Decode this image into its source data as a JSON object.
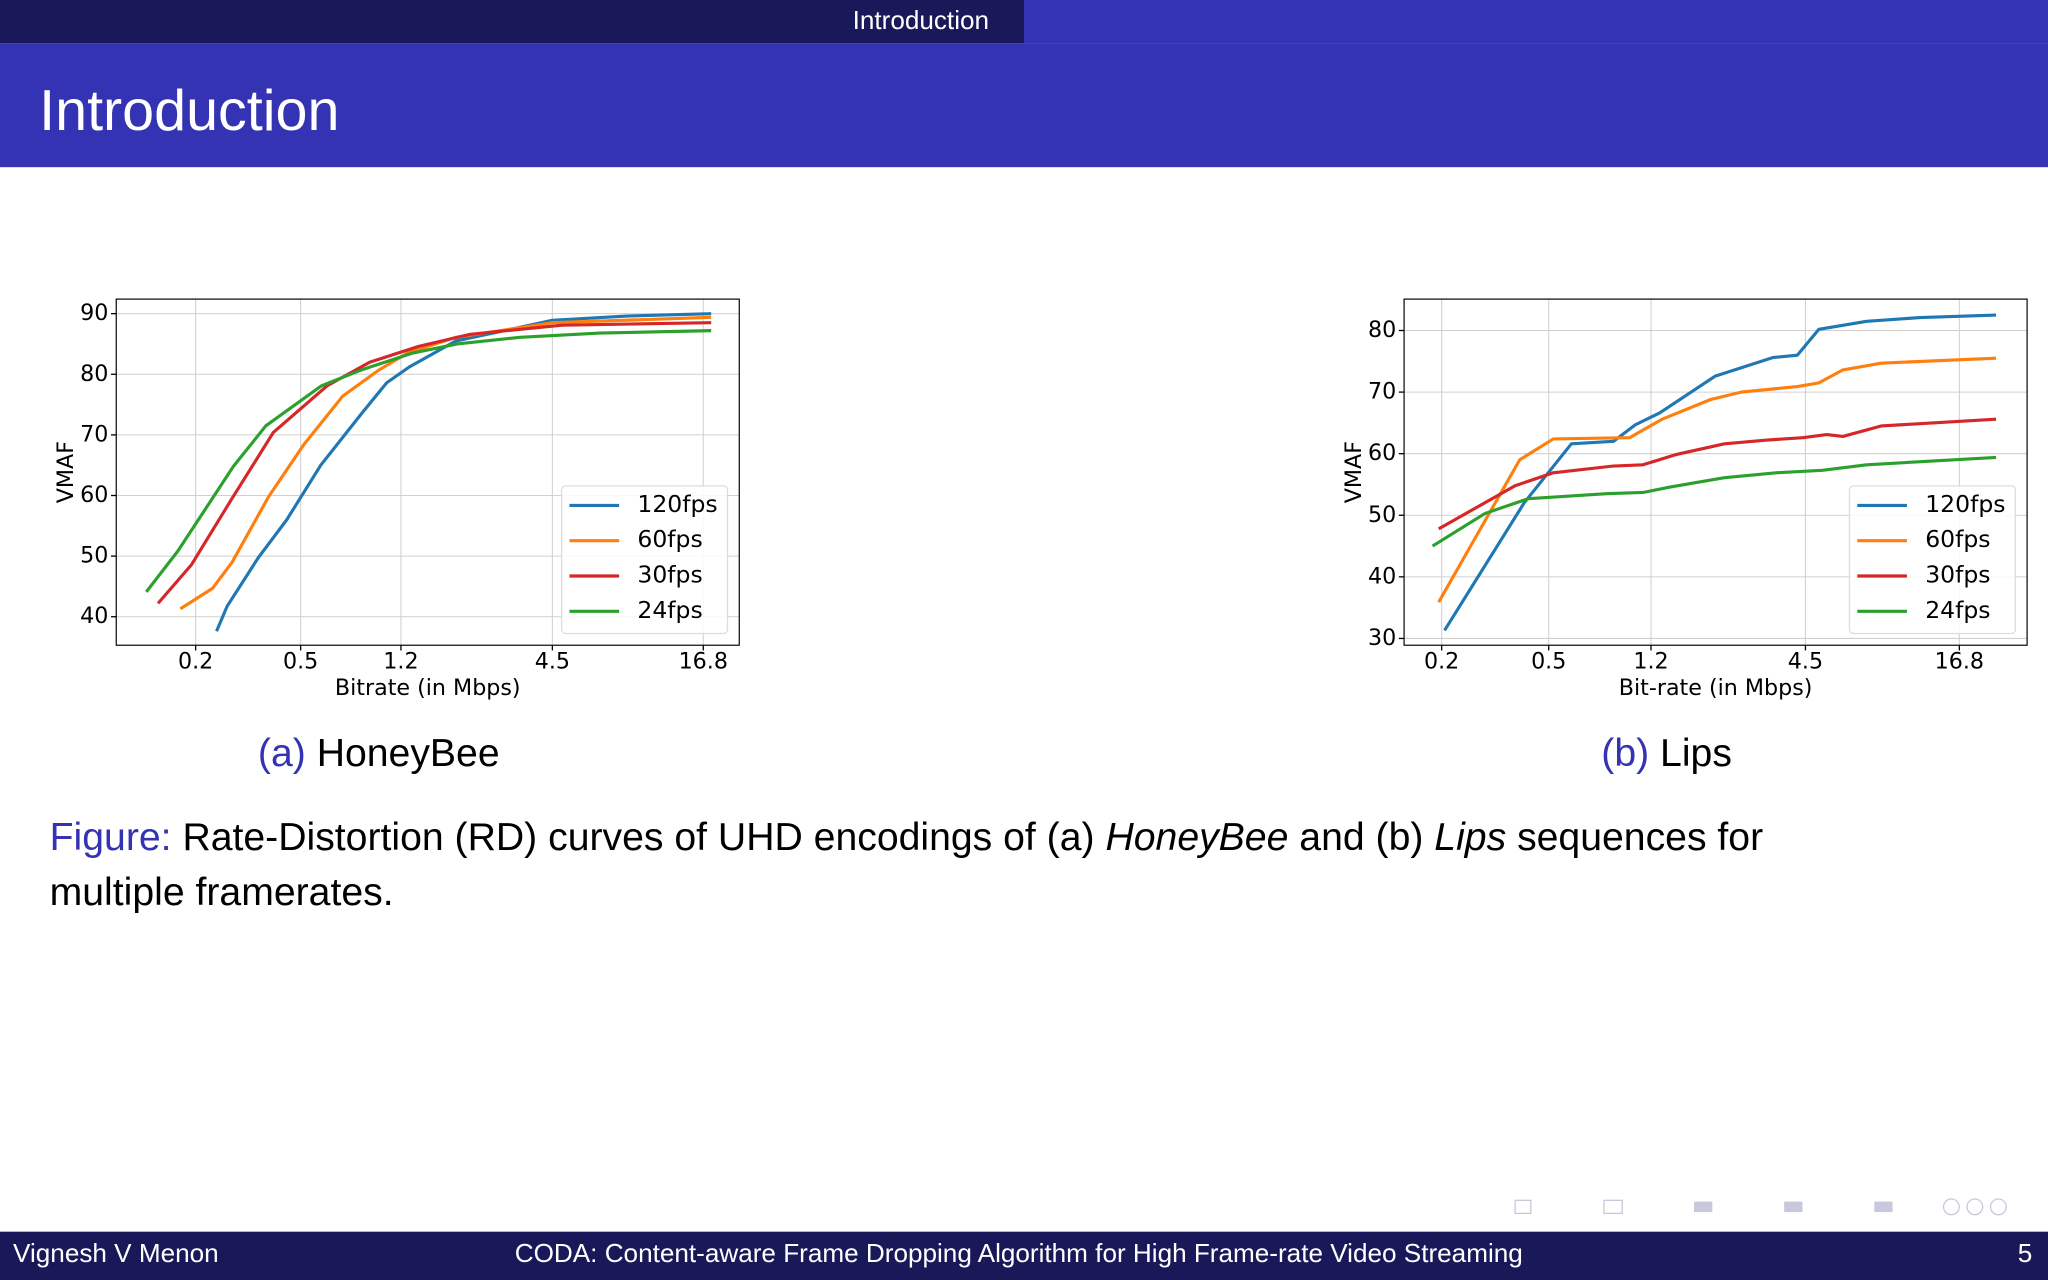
{
  "header": {
    "section": "Introduction",
    "title": "Introduction"
  },
  "chart_data": [
    {
      "type": "line",
      "x_label": "Bitrate (in Mbps)",
      "y_label": "VMAF",
      "caption_label": "(a)",
      "caption": "HoneyBee",
      "xscale": "log",
      "xlim": [
        0.1,
        23
      ],
      "xticks": [
        0.2,
        0.5,
        1.2,
        4.5,
        16.8
      ],
      "ylim": [
        35.3,
        92.4
      ],
      "yticks": [
        40,
        50,
        60,
        70,
        80,
        90
      ],
      "grid": true,
      "legend": "lower right",
      "series": [
        {
          "name": "120fps",
          "color": "#1f77b4",
          "x": [
            0.24,
            0.263,
            0.345,
            0.443,
            0.596,
            0.847,
            1.06,
            1.29,
            1.94,
            4.5,
            8.6,
            18
          ],
          "values": [
            37.6,
            41.7,
            49.7,
            56,
            65,
            73.4,
            78.6,
            81.2,
            85.5,
            88.9,
            89.6,
            90
          ]
        },
        {
          "name": "60fps",
          "color": "#ff7f0e",
          "x": [
            0.175,
            0.232,
            0.275,
            0.378,
            0.514,
            0.722,
            0.99,
            1.27,
            1.94,
            4.5,
            18
          ],
          "values": [
            41.3,
            44.7,
            49,
            59.8,
            68.4,
            76.4,
            80.7,
            83.5,
            86.1,
            88.5,
            89.4
          ]
        },
        {
          "name": "30fps",
          "color": "#d62728",
          "x": [
            0.144,
            0.193,
            0.272,
            0.394,
            0.63,
            0.915,
            1.4,
            2.2,
            4.9,
            18
          ],
          "values": [
            42.2,
            48.6,
            59.2,
            70.4,
            78.1,
            82,
            84.6,
            86.6,
            88.1,
            88.5
          ]
        },
        {
          "name": "24fps",
          "color": "#2ca02c",
          "x": [
            0.13,
            0.171,
            0.278,
            0.369,
            0.6,
            0.847,
            1.33,
            1.96,
            3.4,
            6.8,
            18
          ],
          "values": [
            44.1,
            50.8,
            64.8,
            71.5,
            78.1,
            80.7,
            83.5,
            85,
            86.1,
            86.8,
            87.2
          ]
        }
      ]
    },
    {
      "type": "line",
      "x_label": "Bit-rate (in Mbps)",
      "y_label": "VMAF",
      "caption_label": "(b)",
      "caption": "Lips",
      "xscale": "log",
      "xlim": [
        0.145,
        30
      ],
      "xticks": [
        0.2,
        0.5,
        1.2,
        4.5,
        16.8
      ],
      "ylim": [
        28.9,
        85.1
      ],
      "yticks": [
        30,
        40,
        50,
        60,
        70,
        80
      ],
      "grid": true,
      "legend": "lower right",
      "series": [
        {
          "name": "120fps",
          "color": "#1f77b4",
          "x": [
            0.205,
            0.405,
            0.607,
            0.87,
            1.05,
            1.29,
            2.08,
            3.4,
            4.2,
            5.05,
            7.6,
            12,
            23
          ],
          "values": [
            31.3,
            52,
            61.6,
            62,
            64.7,
            66.6,
            72.6,
            75.6,
            76,
            80.2,
            81.5,
            82.1,
            82.5
          ]
        },
        {
          "name": "60fps",
          "color": "#ff7f0e",
          "x": [
            0.195,
            0.39,
            0.52,
            1.0,
            1.32,
            2.0,
            2.6,
            4.2,
            5.05,
            6.2,
            8.6,
            23
          ],
          "values": [
            35.9,
            59,
            62.4,
            62.6,
            65.6,
            68.8,
            70,
            70.9,
            71.5,
            73.6,
            74.7,
            75.5
          ]
        },
        {
          "name": "30fps",
          "color": "#d62728",
          "x": [
            0.195,
            0.375,
            0.52,
            0.87,
            1.12,
            1.5,
            2.25,
            3.2,
            4.4,
            5.4,
            6.2,
            8.6,
            23
          ],
          "values": [
            47.8,
            54.8,
            56.9,
            58,
            58.2,
            59.9,
            61.6,
            62.2,
            62.6,
            63.1,
            62.8,
            64.5,
            65.6
          ]
        },
        {
          "name": "24fps",
          "color": "#2ca02c",
          "x": [
            0.185,
            0.29,
            0.42,
            0.82,
            1.12,
            1.42,
            2.25,
            3.5,
            5.2,
            7.6,
            23
          ],
          "values": [
            45,
            50.3,
            52.7,
            53.5,
            53.7,
            54.6,
            56.1,
            56.9,
            57.3,
            58.2,
            59.4
          ]
        }
      ]
    }
  ],
  "figure_caption": {
    "label": "Figure:",
    "text1": "Rate-Distortion (RD) curves of UHD encodings of (a)",
    "name1": "HoneyBee",
    "text2": "and (b)",
    "name2": "Lips",
    "text3": "sequences for",
    "line2": "multiple framerates."
  },
  "footer": {
    "author": "Vignesh V Menon",
    "title": "CODA: Content-aware Frame Dropping Algorithm for High Frame-rate Video Streaming",
    "page": "5"
  }
}
